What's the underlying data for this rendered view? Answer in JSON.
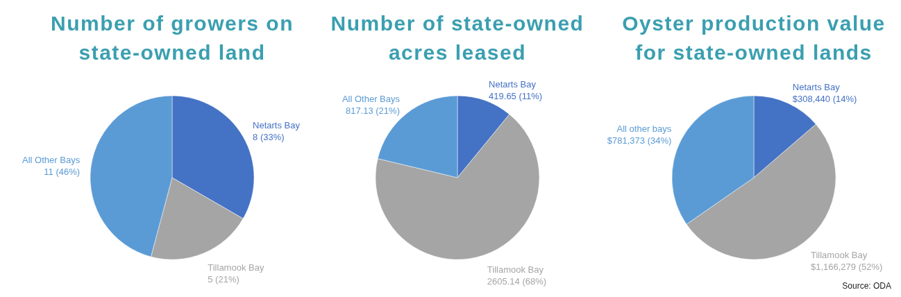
{
  "chart_data": [
    {
      "type": "pie",
      "title": "Number of growers on state-owned land",
      "categories": [
        "Netarts Bay",
        "Tillamook Bay",
        "All Other Bays"
      ],
      "values": [
        8,
        5,
        11
      ],
      "colors": [
        "#4472c4",
        "#a5a5a5",
        "#5b9bd5"
      ],
      "value_labels": [
        "8 (33%)",
        "5 (21%)",
        "11 (46%)"
      ],
      "legend": false
    },
    {
      "type": "pie",
      "title": "Number of state-owned acres leased",
      "categories": [
        "Netarts Bay",
        "Tillamook Bay",
        "All Other Bays"
      ],
      "values": [
        419.65,
        2605.14,
        817.13
      ],
      "colors": [
        "#4472c4",
        "#a5a5a5",
        "#5b9bd5"
      ],
      "value_labels": [
        "419.65 (11%)",
        "2605.14 (68%)",
        "817.13 (21%)"
      ],
      "legend": false
    },
    {
      "type": "pie",
      "title": "Oyster production value for state-owned lands",
      "categories": [
        "Netarts Bay",
        "Tillamook Bay",
        "All other bays"
      ],
      "values": [
        308440,
        1166279,
        781373
      ],
      "colors": [
        "#4472c4",
        "#a5a5a5",
        "#5b9bd5"
      ],
      "value_labels": [
        "$308,440 (14%)",
        "$1,166,279 (52%)",
        "$781,373 (34%)"
      ],
      "legend": false,
      "annotations": [
        "Source: ODA"
      ]
    }
  ]
}
